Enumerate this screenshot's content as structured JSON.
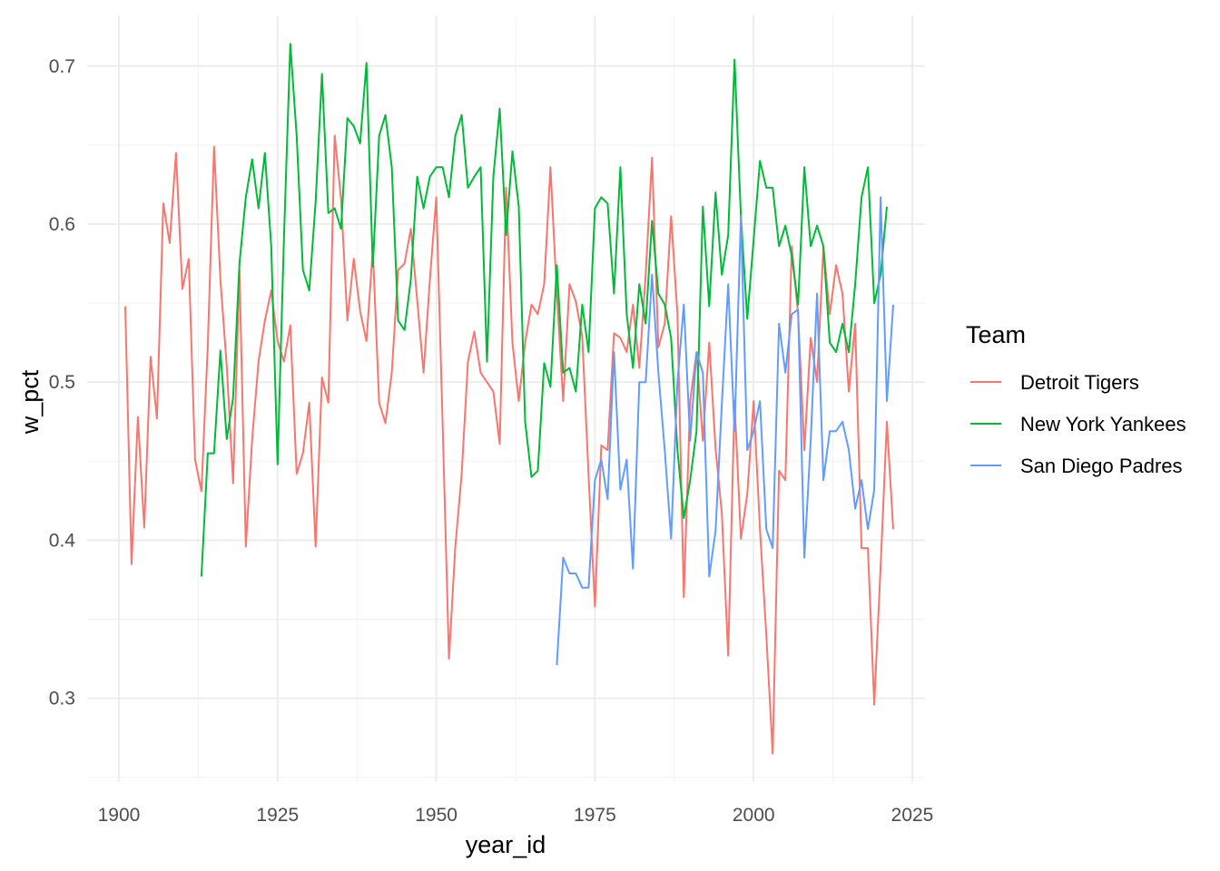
{
  "chart_data": {
    "type": "line",
    "xlabel": "year_id",
    "ylabel": "w_pct",
    "xlim": [
      1895,
      2027
    ],
    "ylim": [
      0.247,
      0.732
    ],
    "x_ticks": [
      1900,
      1925,
      1950,
      1975,
      2000,
      2025
    ],
    "y_ticks": [
      0.3,
      0.4,
      0.5,
      0.6,
      0.7
    ],
    "x_tick_labels": [
      "1900",
      "1925",
      "1950",
      "1975",
      "2000",
      "2025"
    ],
    "y_tick_labels": [
      "0.3",
      "0.4",
      "0.5",
      "0.6",
      "0.7"
    ],
    "grid": true,
    "legend": {
      "title": "Team",
      "position": "right"
    },
    "series": [
      {
        "name": "Detroit Tigers",
        "color": "#F8766D",
        "x_start": 1901,
        "values": [
          0.548,
          0.385,
          0.478,
          0.408,
          0.516,
          0.477,
          0.613,
          0.588,
          0.645,
          0.559,
          0.578,
          0.451,
          0.431,
          0.523,
          0.649,
          0.565,
          0.51,
          0.436,
          0.571,
          0.396,
          0.464,
          0.513,
          0.539,
          0.558,
          0.526,
          0.513,
          0.536,
          0.442,
          0.455,
          0.487,
          0.396,
          0.503,
          0.487,
          0.656,
          0.616,
          0.539,
          0.578,
          0.545,
          0.526,
          0.584,
          0.487,
          0.474,
          0.506,
          0.571,
          0.575,
          0.597,
          0.552,
          0.506,
          0.565,
          0.617,
          0.474,
          0.325,
          0.396,
          0.442,
          0.513,
          0.532,
          0.506,
          0.5,
          0.494,
          0.461,
          0.623,
          0.525,
          0.488,
          0.525,
          0.549,
          0.543,
          0.562,
          0.636,
          0.556,
          0.488,
          0.562,
          0.551,
          0.529,
          0.441,
          0.358,
          0.46,
          0.457,
          0.531,
          0.528,
          0.519,
          0.549,
          0.509,
          0.568,
          0.642,
          0.522,
          0.537,
          0.605,
          0.543,
          0.364,
          0.488,
          0.519,
          0.463,
          0.525,
          0.458,
          0.417,
          0.327,
          0.488,
          0.401,
          0.429,
          0.488,
          0.407,
          0.34,
          0.265,
          0.444,
          0.438,
          0.586,
          0.543,
          0.457,
          0.528,
          0.5,
          0.586,
          0.543,
          0.574,
          0.556,
          0.494,
          0.537,
          0.395,
          0.395,
          0.296,
          0.383,
          0.475,
          0.407
        ]
      },
      {
        "name": "New York Yankees",
        "color": "#00BA38",
        "x_start": 1913,
        "values": [
          0.377,
          0.455,
          0.455,
          0.52,
          0.464,
          0.49,
          0.575,
          0.617,
          0.641,
          0.61,
          0.645,
          0.586,
          0.448,
          0.591,
          0.714,
          0.656,
          0.571,
          0.558,
          0.614,
          0.695,
          0.607,
          0.61,
          0.597,
          0.667,
          0.662,
          0.651,
          0.702,
          0.573,
          0.656,
          0.669,
          0.636,
          0.539,
          0.533,
          0.565,
          0.63,
          0.61,
          0.63,
          0.636,
          0.636,
          0.617,
          0.656,
          0.669,
          0.623,
          0.63,
          0.636,
          0.513,
          0.63,
          0.673,
          0.593,
          0.646,
          0.611,
          0.475,
          0.44,
          0.444,
          0.512,
          0.497,
          0.574,
          0.506,
          0.509,
          0.494,
          0.549,
          0.519,
          0.61,
          0.617,
          0.613,
          0.556,
          0.636,
          0.543,
          0.509,
          0.562,
          0.537,
          0.602,
          0.556,
          0.549,
          0.528,
          0.457,
          0.414,
          0.438,
          0.469,
          0.611,
          0.548,
          0.62,
          0.568,
          0.593,
          0.704,
          0.605,
          0.54,
          0.59,
          0.64,
          0.623,
          0.623,
          0.586,
          0.599,
          0.58,
          0.549,
          0.636,
          0.586,
          0.599,
          0.586,
          0.525,
          0.519,
          0.537,
          0.519,
          0.562,
          0.617,
          0.636,
          0.55,
          0.568,
          0.611
        ]
      },
      {
        "name": "San Diego Padres",
        "color": "#619CFF",
        "x_start": 1969,
        "values": [
          0.321,
          0.389,
          0.379,
          0.379,
          0.37,
          0.37,
          0.438,
          0.451,
          0.426,
          0.519,
          0.432,
          0.451,
          0.382,
          0.5,
          0.5,
          0.568,
          0.506,
          0.457,
          0.401,
          0.5,
          0.549,
          0.463,
          0.519,
          0.506,
          0.377,
          0.406,
          0.486,
          0.562,
          0.469,
          0.605,
          0.457,
          0.469,
          0.488,
          0.407,
          0.395,
          0.537,
          0.506,
          0.543,
          0.546,
          0.389,
          0.463,
          0.556,
          0.438,
          0.469,
          0.469,
          0.475,
          0.457,
          0.42,
          0.438,
          0.407,
          0.432,
          0.617,
          0.488,
          0.549
        ]
      }
    ]
  }
}
